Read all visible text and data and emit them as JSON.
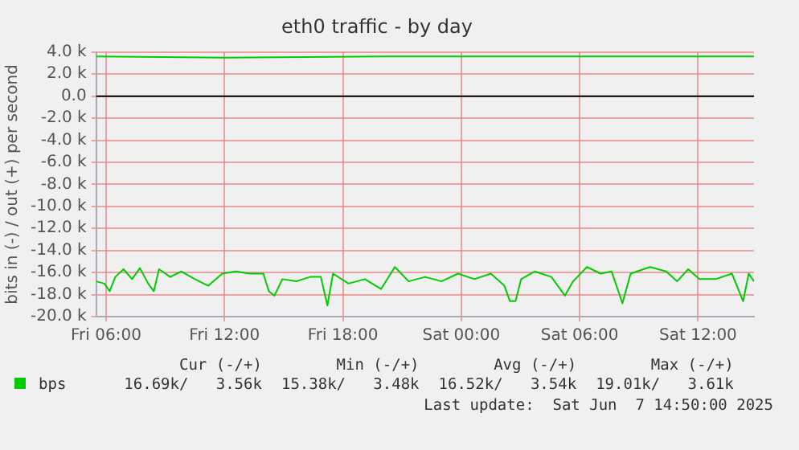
{
  "chart_data": {
    "type": "line",
    "title": "eth0 traffic - by day",
    "ylabel": "bits in (-) / out (+) per second",
    "xlim": [
      "2025-06-06T05:30",
      "2025-06-07T14:50"
    ],
    "xticks": [
      {
        "value": "2025-06-06T06:00",
        "label": "Fri 06:00"
      },
      {
        "value": "2025-06-06T12:00",
        "label": "Fri 12:00"
      },
      {
        "value": "2025-06-06T18:00",
        "label": "Fri 18:00"
      },
      {
        "value": "2025-06-07T00:00",
        "label": "Sat 00:00"
      },
      {
        "value": "2025-06-07T06:00",
        "label": "Sat 06:00"
      },
      {
        "value": "2025-06-07T12:00",
        "label": "Sat 12:00"
      }
    ],
    "ylim": [
      -20000,
      4000
    ],
    "yticks": [
      {
        "value": -20000,
        "label": "-20.0 k"
      },
      {
        "value": -18000,
        "label": "-18.0 k"
      },
      {
        "value": -16000,
        "label": "-16.0 k"
      },
      {
        "value": -14000,
        "label": "-14.0 k"
      },
      {
        "value": -12000,
        "label": "-12.0 k"
      },
      {
        "value": -10000,
        "label": "-10.0 k"
      },
      {
        "value": -8000,
        "label": "-8.0 k"
      },
      {
        "value": -6000,
        "label": "-6.0 k"
      },
      {
        "value": -4000,
        "label": "-4.0 k"
      },
      {
        "value": -2000,
        "label": "-2.0 k"
      },
      {
        "value": 0,
        "label": "0.0"
      },
      {
        "value": 2000,
        "label": "2.0 k"
      },
      {
        "value": 4000,
        "label": "4.0 k"
      }
    ],
    "grid": true,
    "legend": "bottom left",
    "marker": "none",
    "line_style": "solid",
    "ref_lines": [
      {
        "axis": "y",
        "value": 0,
        "color": "#000000"
      }
    ],
    "series": [
      {
        "name": "bps",
        "color": "#00cc00",
        "x": [
          "2025-06-06T05:30",
          "2025-06-06T05:55",
          "2025-06-06T06:11",
          "2025-06-06T06:28",
          "2025-06-06T06:53",
          "2025-06-06T07:19",
          "2025-06-06T07:43",
          "2025-06-06T08:08",
          "2025-06-06T08:25",
          "2025-06-06T08:41",
          "2025-06-06T09:15",
          "2025-06-06T09:49",
          "2025-06-06T10:30",
          "2025-06-06T11:11",
          "2025-06-06T11:53",
          "2025-06-06T12:35",
          "2025-06-06T13:17",
          "2025-06-06T13:58",
          "2025-06-06T14:15",
          "2025-06-06T14:32",
          "2025-06-06T14:56",
          "2025-06-06T15:38",
          "2025-06-06T16:20",
          "2025-06-06T16:53",
          "2025-06-06T17:13",
          "2025-06-06T17:30",
          "2025-06-06T18:17",
          "2025-06-06T19:07",
          "2025-06-06T19:56",
          "2025-06-06T20:38",
          "2025-06-06T21:20",
          "2025-06-06T22:10",
          "2025-06-06T23:00",
          "2025-06-06T23:50",
          "2025-06-07T00:40",
          "2025-06-07T01:30",
          "2025-06-07T02:11",
          "2025-06-07T02:28",
          "2025-06-07T02:45",
          "2025-06-07T03:02",
          "2025-06-07T03:43",
          "2025-06-07T04:34",
          "2025-06-07T05:15",
          "2025-06-07T05:40",
          "2025-06-07T06:22",
          "2025-06-07T07:04",
          "2025-06-07T07:37",
          "2025-06-07T08:10",
          "2025-06-07T08:35",
          "2025-06-07T09:34",
          "2025-06-07T10:23",
          "2025-06-07T10:56",
          "2025-06-07T11:30",
          "2025-06-07T12:04",
          "2025-06-07T12:53",
          "2025-06-07T13:43",
          "2025-06-07T14:17",
          "2025-06-07T14:34",
          "2025-06-07T14:50"
        ],
        "values": [
          -16800,
          -17000,
          -17700,
          -16400,
          -15700,
          -16600,
          -15600,
          -17000,
          -17700,
          -15700,
          -16400,
          -15900,
          -16600,
          -17200,
          -16100,
          -15900,
          -16100,
          -16100,
          -17700,
          -18100,
          -16600,
          -16800,
          -16400,
          -16400,
          -19000,
          -16100,
          -17000,
          -16600,
          -17500,
          -15500,
          -16800,
          -16400,
          -16800,
          -16100,
          -16600,
          -16100,
          -17200,
          -18600,
          -18600,
          -16600,
          -15900,
          -16400,
          -18100,
          -16800,
          -15500,
          -16100,
          -15900,
          -18800,
          -16100,
          -15500,
          -15900,
          -16800,
          -15700,
          -16600,
          -16600,
          -16100,
          -18600,
          -16100,
          -16800
        ]
      },
      {
        "color": "#00cc00",
        "x": [
          "2025-06-06T05:30",
          "2025-06-06T12:00",
          "2025-06-06T20:00",
          "2025-06-07T04:00",
          "2025-06-07T10:00",
          "2025-06-07T14:50"
        ],
        "values": [
          3600,
          3500,
          3600,
          3600,
          3600,
          3600
        ]
      }
    ],
    "annotations": [
      "Cur (-/+)",
      "Min (-/+)",
      "Avg (-/+)",
      "Max (-/+)",
      "16.69k/   3.56k",
      "15.38k/   3.48k",
      "16.52k/   3.54k",
      "19.01k/   3.61k",
      "Last update:  Sat Jun  7 14:50:00 2025"
    ]
  }
}
